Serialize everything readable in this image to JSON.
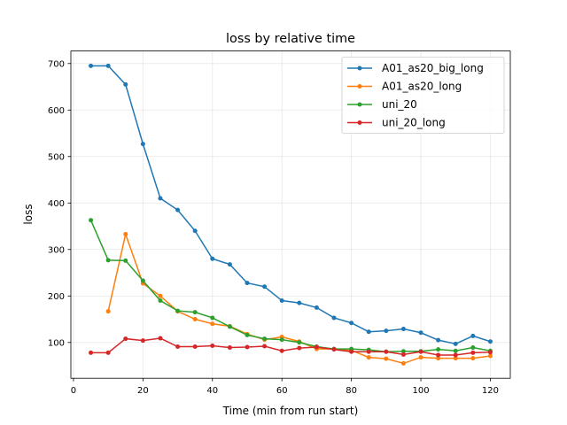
{
  "chart_data": {
    "type": "line",
    "title": "loss by relative time",
    "xlabel": "Time (min from run start)",
    "ylabel": "loss",
    "xlim": [
      -0.75,
      125.75
    ],
    "ylim": [
      23,
      727
    ],
    "xticks": [
      0,
      20,
      40,
      60,
      80,
      100,
      120
    ],
    "yticks": [
      100,
      200,
      300,
      400,
      500,
      600,
      700
    ],
    "grid": true,
    "legend_position": "top-right",
    "series": [
      {
        "name": "A01_as20_big_long",
        "color": "#1f77b4",
        "x": [
          5,
          10,
          15,
          20,
          25,
          30,
          35,
          40,
          45,
          50,
          55,
          60,
          65,
          70,
          75,
          80,
          85,
          90,
          95,
          100,
          105,
          110,
          115,
          120
        ],
        "y": [
          695,
          695,
          655,
          527,
          410,
          385,
          340,
          280,
          268,
          228,
          220,
          190,
          185,
          175,
          153,
          142,
          123,
          125,
          129,
          121,
          105,
          97,
          114,
          102
        ]
      },
      {
        "name": "A01_as20_long",
        "color": "#ff7f0e",
        "x": [
          10,
          15,
          20,
          25,
          30,
          35,
          40,
          45,
          50,
          55,
          60,
          65,
          70,
          75,
          80,
          85,
          90,
          95,
          100,
          105,
          110,
          115,
          120
        ],
        "y": [
          167,
          333,
          227,
          200,
          167,
          150,
          140,
          135,
          118,
          106,
          112,
          102,
          86,
          86,
          83,
          68,
          65,
          55,
          68,
          66,
          66,
          66,
          71
        ]
      },
      {
        "name": "uni_20",
        "color": "#2ca02c",
        "x": [
          5,
          10,
          15,
          20,
          25,
          30,
          35,
          40,
          45,
          50,
          55,
          60,
          65,
          70,
          75,
          80,
          85,
          90,
          95,
          100,
          105,
          110,
          115,
          120
        ],
        "y": [
          363,
          277,
          276,
          233,
          190,
          168,
          165,
          153,
          134,
          116,
          108,
          106,
          100,
          91,
          86,
          86,
          84,
          80,
          81,
          81,
          85,
          82,
          89,
          82
        ]
      },
      {
        "name": "uni_20_long",
        "color": "#d62728",
        "x": [
          5,
          10,
          15,
          20,
          25,
          30,
          35,
          40,
          45,
          50,
          55,
          60,
          65,
          70,
          75,
          80,
          85,
          90,
          95,
          100,
          105,
          110,
          115,
          120
        ],
        "y": [
          78,
          78,
          108,
          104,
          109,
          91,
          91,
          93,
          89,
          90,
          92,
          82,
          88,
          90,
          85,
          80,
          80,
          80,
          74,
          80,
          73,
          73,
          78,
          79
        ]
      }
    ]
  }
}
